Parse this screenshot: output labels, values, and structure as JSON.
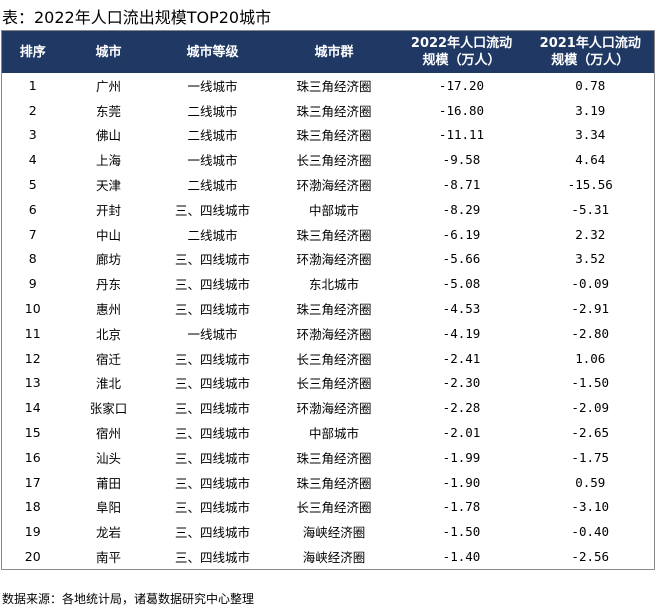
{
  "title": "表：2022年人口流出规模TOP20城市",
  "table": {
    "header": [
      "排序",
      "城市",
      "城市等级",
      "城市群",
      [
        "2022年人口流动",
        "规模（万人）"
      ],
      [
        "2021年人口流动",
        "规模（万人）"
      ]
    ],
    "rows": [
      [
        "1",
        "广州",
        "一线城市",
        "珠三角经济圈",
        "-17.20",
        "0.78"
      ],
      [
        "2",
        "东莞",
        "二线城市",
        "珠三角经济圈",
        "-16.80",
        "3.19"
      ],
      [
        "3",
        "佛山",
        "二线城市",
        "珠三角经济圈",
        "-11.11",
        "3.34"
      ],
      [
        "4",
        "上海",
        "一线城市",
        "长三角经济圈",
        "-9.58",
        "4.64"
      ],
      [
        "5",
        "天津",
        "二线城市",
        "环渤海经济圈",
        "-8.71",
        "-15.56"
      ],
      [
        "6",
        "开封",
        "三、四线城市",
        "中部城市",
        "-8.29",
        "-5.31"
      ],
      [
        "7",
        "中山",
        "二线城市",
        "珠三角经济圈",
        "-6.19",
        "2.32"
      ],
      [
        "8",
        "廊坊",
        "三、四线城市",
        "环渤海经济圈",
        "-5.66",
        "3.52"
      ],
      [
        "9",
        "丹东",
        "三、四线城市",
        "东北城市",
        "-5.08",
        "-0.09"
      ],
      [
        "10",
        "惠州",
        "三、四线城市",
        "珠三角经济圈",
        "-4.53",
        "-2.91"
      ],
      [
        "11",
        "北京",
        "一线城市",
        "环渤海经济圈",
        "-4.19",
        "-2.80"
      ],
      [
        "12",
        "宿迁",
        "三、四线城市",
        "长三角经济圈",
        "-2.41",
        "1.06"
      ],
      [
        "13",
        "淮北",
        "三、四线城市",
        "长三角经济圈",
        "-2.30",
        "-1.50"
      ],
      [
        "14",
        "张家口",
        "三、四线城市",
        "环渤海经济圈",
        "-2.28",
        "-2.09"
      ],
      [
        "15",
        "宿州",
        "三、四线城市",
        "中部城市",
        "-2.01",
        "-2.65"
      ],
      [
        "16",
        "汕头",
        "三、四线城市",
        "珠三角经济圈",
        "-1.99",
        "-1.75"
      ],
      [
        "17",
        "莆田",
        "三、四线城市",
        "珠三角经济圈",
        "-1.90",
        "0.59"
      ],
      [
        "18",
        "阜阳",
        "三、四线城市",
        "长三角经济圈",
        "-1.78",
        "-3.10"
      ],
      [
        "19",
        "龙岩",
        "三、四线城市",
        "海峡经济圈",
        "-1.50",
        "-0.40"
      ],
      [
        "20",
        "南平",
        "三、四线城市",
        "海峡经济圈",
        "-1.40",
        "-2.56"
      ]
    ]
  },
  "footer": "数据来源：各地统计局，诸葛数据研究中心整理"
}
